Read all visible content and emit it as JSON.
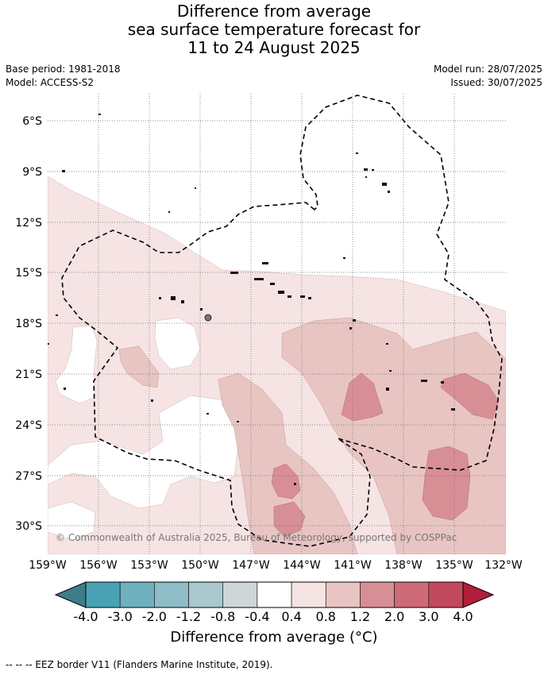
{
  "title": {
    "line1": "Difference from average",
    "line2": "sea surface temperature forecast for",
    "line3": "11 to 24 August 2025"
  },
  "meta": {
    "base_period": "Base period: 1981-2018",
    "model": "Model: ACCESS-S2",
    "model_run": "Model run: 28/07/2025",
    "issued": "Issued: 30/07/2025"
  },
  "map": {
    "lon_labels": [
      "159°W",
      "156°W",
      "153°W",
      "150°W",
      "147°W",
      "144°W",
      "141°W",
      "138°W",
      "135°W",
      "132°W"
    ],
    "lat_labels": [
      "6°S",
      "9°S",
      "12°S",
      "15°S",
      "18°S",
      "21°S",
      "24°S",
      "27°S",
      "30°S"
    ],
    "copyright": "© Commonwealth of Australia 2025, Bureau of Meteorology, supported by COSPPac"
  },
  "colorbar": {
    "ticks": [
      "-4.0",
      "-3.0",
      "-2.0",
      "-1.2",
      "-0.8",
      "-0.4",
      "0.4",
      "0.8",
      "1.2",
      "2.0",
      "3.0",
      "4.0"
    ],
    "colors": [
      "#4aa3b4",
      "#6fb0bf",
      "#8ebcc7",
      "#a8c8cd",
      "#cfd6d8",
      "#ffffff",
      "#f5e4e3",
      "#e8c5c2",
      "#d78f95",
      "#cf6a77",
      "#c24a5c"
    ],
    "low_extend_color": "#3e7c8a",
    "high_extend_color": "#b01e3c",
    "label": "Difference from average (°C)"
  },
  "footer": "-- -- -- EEZ border V11 (Flanders Marine Institute, 2019)."
}
